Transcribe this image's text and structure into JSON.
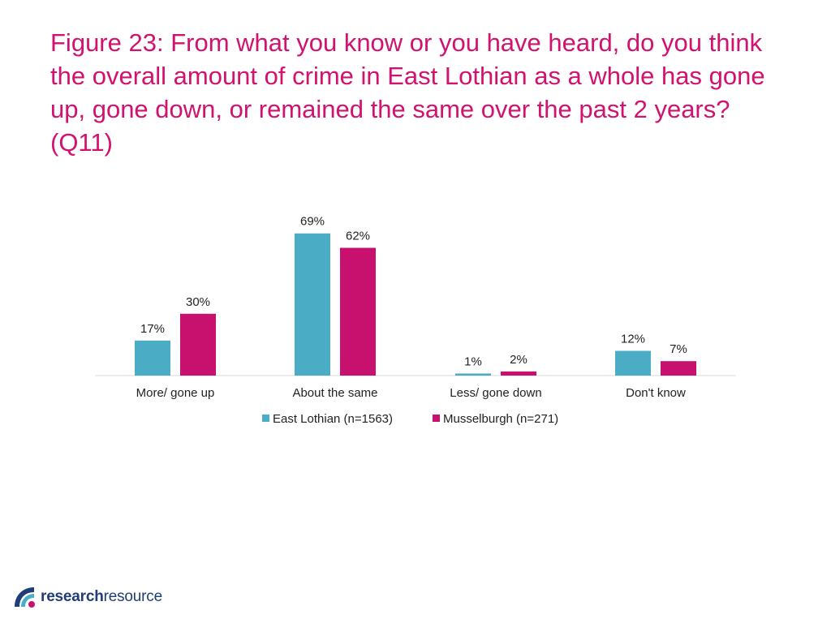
{
  "title": "Figure 23: From what you know or you have heard, do you think the overall amount of crime in East Lothian as a whole has gone up, gone down, or remained the same over the past 2 years? (Q11)",
  "colors": {
    "title": "#d1126f",
    "series1": "#4bacc6",
    "series2": "#c8106e",
    "text": "#222222",
    "axis": "#d9d9d9",
    "logo_dark": "#1f3e78"
  },
  "logo": {
    "part1": "research",
    "part2": "resource"
  },
  "chart_data": {
    "type": "bar",
    "categories": [
      "More/ gone up",
      "About the same",
      "Less/ gone down",
      "Don't know"
    ],
    "series": [
      {
        "name": "East Lothian (n=1563)",
        "values": [
          17,
          69,
          1,
          12
        ],
        "labels": [
          "17%",
          "69%",
          "1%",
          "12%"
        ],
        "color": "#4bacc6"
      },
      {
        "name": "Musselburgh (n=271)",
        "values": [
          30,
          62,
          2,
          7
        ],
        "labels": [
          "30%",
          "62%",
          "2%",
          "7%"
        ],
        "color": "#c8106e"
      }
    ],
    "ylim": [
      0,
      100
    ],
    "grid": false,
    "legend": "bottom"
  }
}
